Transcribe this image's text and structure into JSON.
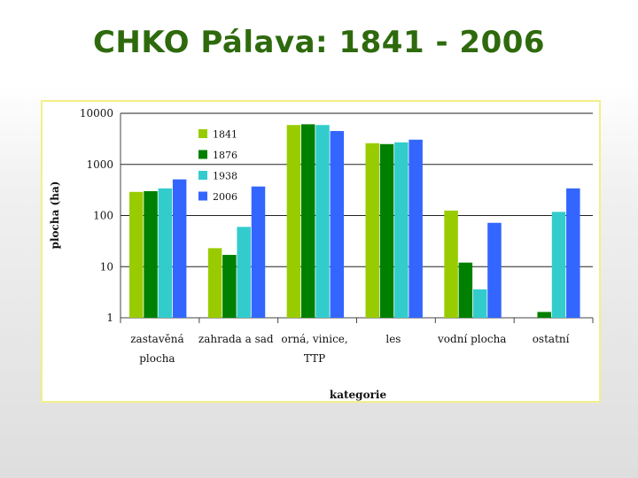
{
  "slide": {
    "title": "CHKO Pálava: 1841 - 2006"
  },
  "chart_data": {
    "type": "bar",
    "title": "",
    "xlabel": "kategorie",
    "ylabel": "plocha (ha)",
    "yscale": "log",
    "ylim": [
      1,
      10000
    ],
    "yticks": [
      "1",
      "10",
      "100",
      "1000",
      "10000"
    ],
    "grid": true,
    "legend_position": "top-left",
    "categories": [
      [
        "zastavěná",
        "plocha"
      ],
      [
        "zahrada a sad"
      ],
      [
        "orná, vinice,",
        "TTP"
      ],
      [
        "les"
      ],
      [
        "vodní plocha"
      ],
      [
        "ostatní"
      ]
    ],
    "series": [
      {
        "name": "1841",
        "color": "#99cc00",
        "values": [
          290,
          23,
          5900,
          2600,
          125,
          null
        ]
      },
      {
        "name": "1876",
        "color": "#008000",
        "values": [
          300,
          17,
          6100,
          2500,
          12,
          1.3
        ]
      },
      {
        "name": "1938",
        "color": "#33cccc",
        "values": [
          340,
          60,
          5900,
          2700,
          3.6,
          118
        ]
      },
      {
        "name": "2006",
        "color": "#3366ff",
        "values": [
          510,
          370,
          4500,
          3050,
          72,
          340
        ]
      }
    ]
  }
}
